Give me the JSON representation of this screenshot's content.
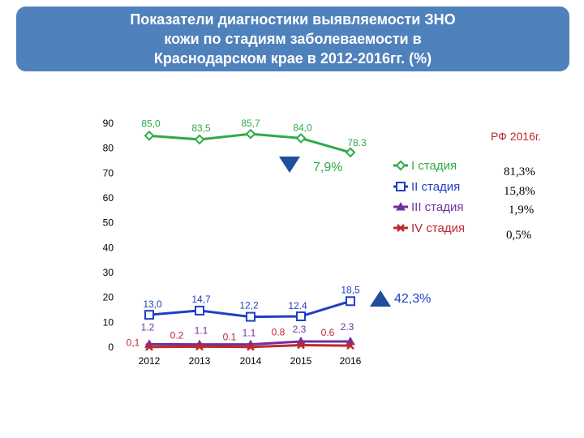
{
  "title": {
    "lines": [
      "Показатели диагностики выявляемости ЗНО",
      "кожи по стадиям заболеваемости в",
      "Краснодарском крае в 2012-2016гг. (%)"
    ]
  },
  "chart_data": {
    "type": "line",
    "categories": [
      "2012",
      "2013",
      "2014",
      "2015",
      "2016"
    ],
    "ylim": [
      0,
      90
    ],
    "yticks": [
      "0",
      "10",
      "20",
      "30",
      "40",
      "50",
      "60",
      "70",
      "80",
      "90"
    ],
    "series": [
      {
        "name": "I стадия",
        "color": "#2eab48",
        "marker": "diamond",
        "values": [
          85.0,
          83.5,
          85.7,
          84.0,
          78.3
        ],
        "labels": [
          "85,0",
          "83,5",
          "85,7",
          "84,0",
          "78.3"
        ]
      },
      {
        "name": "II стадия",
        "color": "#1f3fc7",
        "marker": "square",
        "values": [
          13.0,
          14.7,
          12.2,
          12.4,
          18.5
        ],
        "labels": [
          "13,0",
          "14,7",
          "12,2",
          "12.4",
          "18,5"
        ]
      },
      {
        "name": "III стадия",
        "color": "#7030a0",
        "marker": "triangle",
        "values": [
          1.2,
          1.1,
          1.1,
          2.3,
          2.3
        ],
        "labels": [
          "1.2",
          "1.1",
          "1.1",
          "2,3",
          "2.3"
        ]
      },
      {
        "name": "IV стадия",
        "color": "#c0282d",
        "marker": "x",
        "values": [
          0.1,
          0.2,
          0.1,
          0.8,
          0.6
        ],
        "labels": [
          "0,1",
          "0.2",
          "0.1",
          "0.8",
          "0.6"
        ]
      }
    ],
    "annotations": {
      "down_change": "7,9%",
      "up_change": "42,3%",
      "down_arrow_color": "#1f4e9c",
      "up_arrow_color": "#1f4e9c"
    },
    "legend_position": "right",
    "grid": false
  },
  "rf": {
    "title": "РФ 2016г.",
    "values": [
      "81,3%",
      "15,8%",
      "1,9%",
      "0,5%"
    ]
  }
}
